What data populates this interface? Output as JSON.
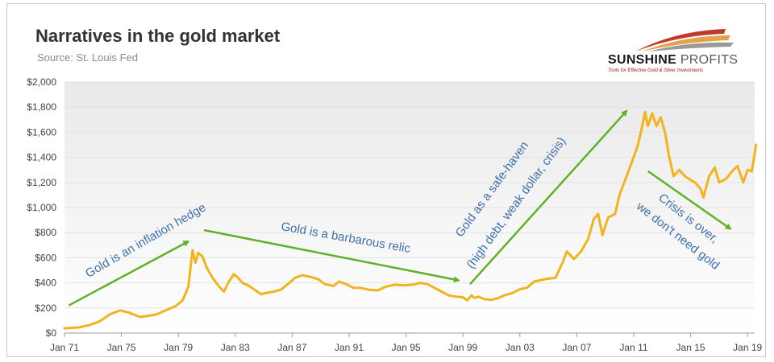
{
  "header": {
    "title": "Narratives in the gold market",
    "subtitle": "Source: St. Louis Fed"
  },
  "logo": {
    "name_part1": "SUNSHINE",
    "name_part2": " PROFITS",
    "tagline": "Tools for Effective Gold & Silver Investments",
    "colors": [
      "#c0392b",
      "#e2a34a",
      "#7a7a7a"
    ]
  },
  "chart_data": {
    "type": "line",
    "title": "Narratives in the gold market",
    "subtitle": "Source: St. Louis Fed",
    "xlabel": "",
    "ylabel": "",
    "x_range": [
      1971.0,
      2019.5
    ],
    "ylim": [
      0,
      2000
    ],
    "y_ticks": [
      0,
      200,
      400,
      600,
      800,
      1000,
      1200,
      1400,
      1600,
      1800,
      2000
    ],
    "y_tick_labels": [
      "$0",
      "$200",
      "$400",
      "$600",
      "$800",
      "$1,000",
      "$1,200",
      "$1,400",
      "$1,600",
      "$1,800",
      "$2,000"
    ],
    "x_ticks": [
      1971,
      1975,
      1979,
      1983,
      1987,
      1991,
      1995,
      1999,
      2003,
      2007,
      2011,
      2015,
      2019
    ],
    "x_tick_labels": [
      "Jan 71",
      "Jan 75",
      "Jan 79",
      "Jan 83",
      "Jan 87",
      "Jan 91",
      "Jan 95",
      "Jan 99",
      "Jan 03",
      "Jan 07",
      "Jan 11",
      "Jan 15",
      "Jan 19"
    ],
    "grid": "horizontal",
    "series": [
      {
        "color": "#f2b31f",
        "x": [
          1971.0,
          1972.0,
          1972.8,
          1973.5,
          1974.2,
          1974.9,
          1975.5,
          1976.3,
          1976.8,
          1977.5,
          1978.2,
          1978.8,
          1979.3,
          1979.7,
          1980.0,
          1980.2,
          1980.4,
          1980.7,
          1981.0,
          1981.4,
          1981.8,
          1982.2,
          1982.5,
          1982.9,
          1983.2,
          1983.5,
          1983.9,
          1984.3,
          1984.8,
          1985.2,
          1985.7,
          1986.2,
          1986.8,
          1987.2,
          1987.7,
          1988.2,
          1988.8,
          1989.3,
          1989.9,
          1990.3,
          1990.8,
          1991.3,
          1991.8,
          1992.4,
          1993.0,
          1993.6,
          1994.2,
          1994.8,
          1995.5,
          1996.0,
          1996.5,
          1997.0,
          1997.5,
          1998.0,
          1998.5,
          1999.0,
          1999.3,
          1999.6,
          1999.8,
          2000.1,
          2000.5,
          2001.0,
          2001.4,
          2001.9,
          2002.5,
          2003.0,
          2003.5,
          2004.0,
          2004.8,
          2005.5,
          2006.0,
          2006.3,
          2006.8,
          2007.3,
          2007.8,
          2008.2,
          2008.5,
          2008.8,
          2009.2,
          2009.7,
          2010.0,
          2010.5,
          2010.9,
          2011.3,
          2011.6,
          2011.8,
          2012.0,
          2012.3,
          2012.6,
          2012.9,
          2013.2,
          2013.5,
          2013.8,
          2014.2,
          2014.6,
          2015.0,
          2015.3,
          2015.7,
          2015.9,
          2016.3,
          2016.7,
          2017.0,
          2017.5,
          2018.0,
          2018.3,
          2018.7,
          2019.0,
          2019.3,
          2019.6
        ],
        "y": [
          38,
          45,
          65,
          95,
          150,
          180,
          165,
          128,
          135,
          150,
          185,
          215,
          260,
          370,
          660,
          560,
          640,
          610,
          520,
          440,
          380,
          330,
          400,
          470,
          440,
          400,
          380,
          350,
          310,
          320,
          330,
          345,
          400,
          440,
          460,
          450,
          430,
          390,
          375,
          410,
          390,
          360,
          360,
          345,
          340,
          370,
          385,
          380,
          385,
          400,
          390,
          360,
          330,
          300,
          290,
          285,
          260,
          300,
          280,
          290,
          270,
          265,
          275,
          300,
          320,
          350,
          360,
          410,
          430,
          440,
          560,
          650,
          590,
          650,
          750,
          910,
          950,
          780,
          920,
          950,
          1100,
          1250,
          1370,
          1500,
          1650,
          1760,
          1650,
          1750,
          1650,
          1720,
          1600,
          1400,
          1250,
          1300,
          1250,
          1220,
          1200,
          1150,
          1080,
          1250,
          1320,
          1200,
          1230,
          1300,
          1330,
          1200,
          1300,
          1290,
          1500
        ]
      }
    ],
    "annotations": [
      {
        "text": "Gold is an inflation hedge",
        "arrow_from": [
          1971.3,
          220
        ],
        "arrow_to": [
          1979.7,
          730
        ]
      },
      {
        "text": "Gold is a barbarous relic",
        "arrow_from": [
          1980.8,
          820
        ],
        "arrow_to": [
          1998.7,
          420
        ]
      },
      {
        "text": "Gold as a safe-haven",
        "text2": "(high debt, weak dollar, crisis)",
        "arrow_from": [
          1999.5,
          390
        ],
        "arrow_to": [
          2010.5,
          1770
        ]
      },
      {
        "text": "Crisis is over,",
        "text2": "we don't need gold",
        "arrow_from": [
          2012.0,
          1290
        ],
        "arrow_to": [
          2017.8,
          830
        ]
      }
    ],
    "colors": {
      "line": "#f2b31f",
      "arrow": "#5fb228",
      "annotation": "#3f6fa8",
      "grid": "#e3e3e3"
    }
  }
}
